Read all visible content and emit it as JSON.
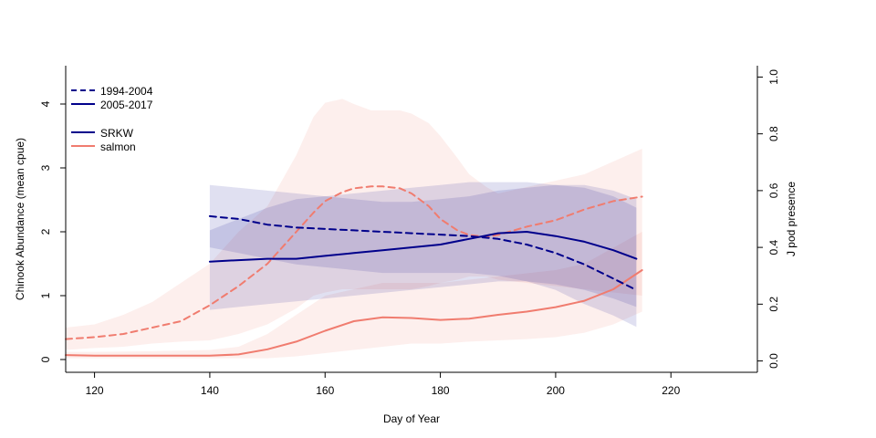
{
  "chart_data": {
    "type": "line",
    "xlabel": "Day of Year",
    "ylabel": "Chinook Abundance (mean cpue)",
    "y2label": "J pod presence",
    "xlim": [
      115,
      235
    ],
    "ylim": [
      -0.2,
      4.6
    ],
    "y2lim": [
      -0.04,
      1.04
    ],
    "x_ticks": [
      120,
      140,
      160,
      180,
      200,
      220
    ],
    "y_ticks": [
      0,
      1,
      2,
      3,
      4
    ],
    "y2_ticks": [
      "0.0",
      "0.2",
      "0.4",
      "0.6",
      "0.8",
      "1.0"
    ],
    "grid": false,
    "legend_position": "top-left",
    "legend": {
      "periods": [
        {
          "label": "1994-2004",
          "style": "dashed",
          "color": "#00008b"
        },
        {
          "label": "2005-2017",
          "style": "solid",
          "color": "#00008b"
        }
      ],
      "types": [
        {
          "label": "SRKW",
          "color": "#00008b"
        },
        {
          "label": "salmon",
          "color": "#f07c6f"
        }
      ]
    },
    "series": [
      {
        "legend_group": "salmon 1994-2004",
        "axis": "left",
        "color": "#f07c6f",
        "style": "dashed",
        "x": [
          115,
          120,
          125,
          130,
          135,
          140,
          145,
          150,
          155,
          158,
          160,
          163,
          165,
          168,
          170,
          173,
          175,
          178,
          180,
          183,
          185,
          188,
          190,
          195,
          200,
          205,
          210,
          215
        ],
        "y": [
          0.32,
          0.35,
          0.4,
          0.5,
          0.6,
          0.85,
          1.15,
          1.5,
          2.0,
          2.3,
          2.48,
          2.62,
          2.68,
          2.71,
          2.71,
          2.68,
          2.6,
          2.4,
          2.2,
          2.02,
          1.95,
          1.92,
          1.95,
          2.08,
          2.18,
          2.35,
          2.48,
          2.55
        ],
        "band_upper": [
          0.5,
          0.55,
          0.7,
          0.9,
          1.2,
          1.5,
          2.0,
          2.4,
          3.2,
          3.8,
          4.02,
          4.08,
          4.0,
          3.9,
          3.9,
          3.9,
          3.85,
          3.7,
          3.5,
          3.15,
          2.9,
          2.7,
          2.6,
          2.7,
          2.8,
          2.9,
          3.1,
          3.3
        ],
        "band_lower": [
          0.15,
          0.18,
          0.2,
          0.25,
          0.28,
          0.3,
          0.4,
          0.55,
          0.8,
          1.0,
          1.05,
          1.1,
          1.1,
          1.1,
          1.1,
          1.1,
          1.1,
          1.15,
          1.2,
          1.25,
          1.3,
          1.3,
          1.25,
          1.2,
          1.15,
          1.1,
          1.05,
          1.0
        ]
      },
      {
        "legend_group": "salmon 2005-2017",
        "axis": "left",
        "color": "#f07c6f",
        "style": "solid",
        "x": [
          115,
          120,
          130,
          140,
          145,
          150,
          155,
          160,
          165,
          170,
          175,
          180,
          185,
          190,
          195,
          200,
          205,
          210,
          215
        ],
        "y": [
          0.07,
          0.06,
          0.06,
          0.06,
          0.08,
          0.16,
          0.28,
          0.45,
          0.6,
          0.66,
          0.65,
          0.62,
          0.64,
          0.7,
          0.75,
          0.82,
          0.92,
          1.1,
          1.4
        ],
        "band_upper": [
          0.12,
          0.12,
          0.13,
          0.15,
          0.2,
          0.4,
          0.7,
          1.0,
          1.1,
          1.2,
          1.2,
          1.2,
          1.25,
          1.3,
          1.35,
          1.4,
          1.5,
          1.75,
          2.0
        ],
        "band_lower": [
          0.02,
          0.02,
          0.02,
          0.02,
          0.02,
          0.02,
          0.05,
          0.1,
          0.15,
          0.2,
          0.25,
          0.25,
          0.28,
          0.3,
          0.32,
          0.35,
          0.42,
          0.55,
          0.75
        ]
      },
      {
        "legend_group": "SRKW 1994-2004",
        "axis": "right",
        "color": "#00008b",
        "style": "dashed",
        "x": [
          140,
          145,
          150,
          155,
          160,
          165,
          170,
          175,
          180,
          185,
          190,
          195,
          200,
          205,
          210,
          214
        ],
        "y": [
          0.51,
          0.5,
          0.48,
          0.47,
          0.465,
          0.46,
          0.455,
          0.45,
          0.445,
          0.44,
          0.43,
          0.41,
          0.38,
          0.34,
          0.29,
          0.25
        ],
        "band_upper": [
          0.62,
          0.61,
          0.6,
          0.59,
          0.58,
          0.57,
          0.56,
          0.56,
          0.57,
          0.58,
          0.6,
          0.61,
          0.62,
          0.62,
          0.6,
          0.57
        ],
        "band_lower": [
          0.4,
          0.38,
          0.36,
          0.34,
          0.33,
          0.32,
          0.31,
          0.31,
          0.31,
          0.31,
          0.3,
          0.28,
          0.25,
          0.2,
          0.16,
          0.12
        ]
      },
      {
        "legend_group": "SRKW 2005-2017",
        "axis": "right",
        "color": "#00008b",
        "style": "solid",
        "x": [
          140,
          145,
          150,
          155,
          160,
          165,
          170,
          175,
          180,
          185,
          190,
          195,
          200,
          205,
          210,
          214
        ],
        "y": [
          0.35,
          0.355,
          0.36,
          0.36,
          0.37,
          0.38,
          0.39,
          0.4,
          0.41,
          0.43,
          0.45,
          0.455,
          0.44,
          0.42,
          0.39,
          0.36
        ],
        "band_upper": [
          0.46,
          0.5,
          0.54,
          0.57,
          0.58,
          0.59,
          0.6,
          0.61,
          0.62,
          0.63,
          0.63,
          0.63,
          0.62,
          0.61,
          0.58,
          0.54
        ],
        "band_lower": [
          0.18,
          0.19,
          0.2,
          0.21,
          0.22,
          0.23,
          0.24,
          0.25,
          0.26,
          0.27,
          0.28,
          0.28,
          0.27,
          0.25,
          0.22,
          0.19
        ]
      }
    ]
  }
}
